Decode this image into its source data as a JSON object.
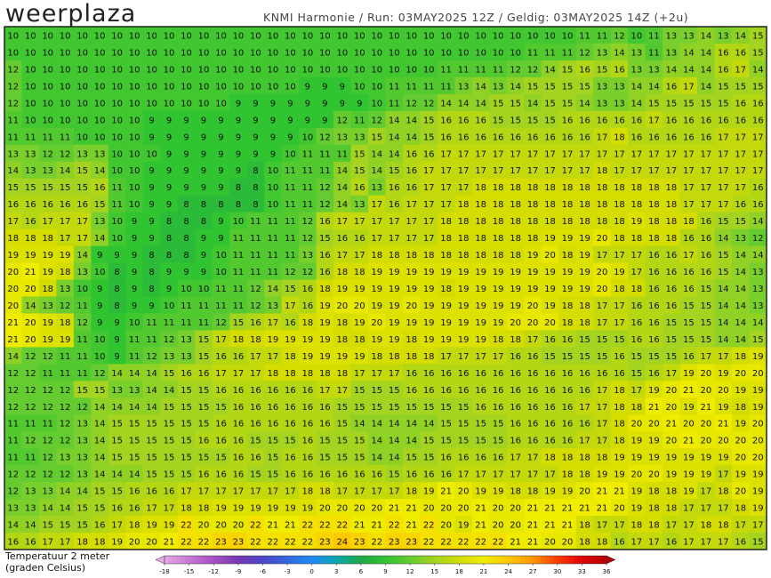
{
  "header": {
    "logo": "weerplaza",
    "info": "KNMI Harmonie / Run: 03MAY2025 12Z / Geldig: 03MAY2025 14Z (+2u)"
  },
  "map": {
    "grid": [
      [
        10,
        10,
        10,
        10,
        10,
        10,
        10,
        10,
        10,
        10,
        10,
        10,
        10,
        10,
        10,
        10,
        10,
        10,
        10,
        10,
        10,
        10,
        10,
        10,
        10,
        10,
        10,
        10,
        10,
        10,
        10,
        10,
        10,
        11,
        11,
        12,
        10,
        11,
        13,
        13,
        14,
        13,
        14,
        15
      ],
      [
        10,
        10,
        10,
        10,
        10,
        10,
        10,
        10,
        10,
        10,
        10,
        10,
        10,
        10,
        10,
        10,
        10,
        10,
        10,
        10,
        10,
        10,
        10,
        10,
        10,
        10,
        10,
        10,
        10,
        10,
        11,
        11,
        11,
        12,
        13,
        14,
        13,
        11,
        13,
        14,
        14,
        16,
        16,
        15
      ],
      [
        12,
        10,
        10,
        10,
        10,
        10,
        10,
        10,
        10,
        10,
        10,
        10,
        10,
        10,
        10,
        10,
        10,
        10,
        10,
        10,
        10,
        10,
        10,
        10,
        10,
        11,
        11,
        11,
        11,
        12,
        12,
        14,
        15,
        16,
        15,
        16,
        13,
        13,
        14,
        14,
        14,
        16,
        17,
        14
      ],
      [
        12,
        10,
        10,
        10,
        10,
        10,
        10,
        10,
        10,
        10,
        10,
        10,
        10,
        10,
        10,
        10,
        10,
        9,
        9,
        9,
        10,
        10,
        11,
        11,
        11,
        11,
        13,
        14,
        13,
        14,
        15,
        15,
        15,
        15,
        13,
        13,
        14,
        14,
        16,
        17,
        14,
        15,
        15,
        15
      ],
      [
        12,
        10,
        10,
        10,
        10,
        10,
        10,
        10,
        10,
        10,
        10,
        10,
        10,
        9,
        9,
        9,
        9,
        9,
        9,
        9,
        9,
        10,
        11,
        12,
        12,
        14,
        14,
        14,
        15,
        15,
        14,
        15,
        15,
        14,
        13,
        13,
        14,
        15,
        15,
        15,
        15,
        15,
        16,
        16
      ],
      [
        11,
        10,
        10,
        10,
        10,
        10,
        10,
        10,
        9,
        9,
        9,
        9,
        9,
        9,
        9,
        9,
        9,
        9,
        9,
        12,
        11,
        12,
        14,
        14,
        15,
        16,
        16,
        16,
        15,
        15,
        15,
        15,
        16,
        16,
        16,
        16,
        16,
        17,
        16,
        16,
        16,
        16,
        16,
        16
      ],
      [
        11,
        11,
        11,
        11,
        10,
        10,
        10,
        10,
        9,
        9,
        9,
        9,
        9,
        9,
        9,
        9,
        9,
        10,
        12,
        13,
        13,
        15,
        14,
        14,
        15,
        16,
        16,
        16,
        16,
        16,
        16,
        16,
        16,
        16,
        17,
        18,
        16,
        16,
        16,
        16,
        16,
        17,
        17,
        17
      ],
      [
        13,
        13,
        12,
        12,
        13,
        13,
        10,
        10,
        10,
        9,
        9,
        9,
        9,
        9,
        9,
        9,
        10,
        11,
        11,
        11,
        15,
        14,
        14,
        16,
        16,
        17,
        17,
        17,
        17,
        17,
        17,
        17,
        17,
        17,
        17,
        17,
        17,
        17,
        17,
        17,
        17,
        17,
        17,
        17
      ],
      [
        14,
        13,
        13,
        14,
        15,
        14,
        10,
        10,
        9,
        9,
        9,
        9,
        9,
        9,
        8,
        10,
        11,
        11,
        11,
        14,
        15,
        14,
        15,
        16,
        17,
        17,
        17,
        17,
        17,
        17,
        17,
        17,
        17,
        17,
        18,
        17,
        17,
        17,
        17,
        17,
        17,
        17,
        17,
        17
      ],
      [
        15,
        15,
        15,
        15,
        15,
        16,
        11,
        10,
        9,
        9,
        9,
        9,
        9,
        8,
        8,
        10,
        11,
        11,
        12,
        14,
        16,
        13,
        16,
        16,
        17,
        17,
        17,
        18,
        18,
        18,
        18,
        18,
        18,
        18,
        18,
        18,
        18,
        18,
        18,
        17,
        17,
        17,
        17,
        16
      ],
      [
        16,
        16,
        16,
        16,
        16,
        15,
        11,
        10,
        9,
        9,
        8,
        8,
        8,
        8,
        8,
        10,
        11,
        11,
        12,
        14,
        13,
        17,
        16,
        17,
        17,
        17,
        18,
        18,
        18,
        18,
        18,
        18,
        18,
        18,
        18,
        18,
        18,
        18,
        18,
        17,
        17,
        17,
        16,
        16
      ],
      [
        17,
        16,
        17,
        17,
        17,
        13,
        10,
        9,
        9,
        8,
        8,
        8,
        9,
        10,
        11,
        11,
        11,
        12,
        16,
        17,
        17,
        17,
        17,
        17,
        17,
        18,
        18,
        18,
        18,
        18,
        18,
        18,
        18,
        18,
        18,
        18,
        19,
        18,
        18,
        18,
        16,
        15,
        15,
        14
      ],
      [
        18,
        18,
        18,
        17,
        17,
        14,
        10,
        9,
        9,
        8,
        8,
        9,
        9,
        11,
        11,
        11,
        11,
        12,
        15,
        16,
        16,
        17,
        17,
        17,
        17,
        18,
        18,
        18,
        18,
        18,
        18,
        19,
        19,
        19,
        20,
        18,
        18,
        18,
        18,
        16,
        16,
        14,
        13,
        12
      ],
      [
        19,
        19,
        19,
        19,
        14,
        9,
        9,
        9,
        8,
        8,
        8,
        9,
        10,
        11,
        11,
        11,
        11,
        13,
        16,
        17,
        17,
        18,
        18,
        18,
        18,
        18,
        18,
        18,
        18,
        18,
        19,
        20,
        18,
        19,
        17,
        17,
        17,
        16,
        16,
        17,
        16,
        15,
        14,
        14
      ],
      [
        20,
        21,
        19,
        18,
        13,
        10,
        8,
        9,
        8,
        9,
        9,
        9,
        10,
        11,
        11,
        11,
        12,
        12,
        16,
        18,
        18,
        19,
        19,
        19,
        19,
        19,
        19,
        19,
        19,
        19,
        19,
        19,
        19,
        19,
        20,
        19,
        17,
        16,
        16,
        16,
        16,
        15,
        14,
        13
      ],
      [
        20,
        20,
        18,
        13,
        10,
        9,
        8,
        9,
        8,
        9,
        10,
        10,
        11,
        11,
        12,
        14,
        15,
        16,
        18,
        19,
        19,
        19,
        19,
        19,
        19,
        18,
        19,
        19,
        19,
        19,
        19,
        19,
        19,
        19,
        20,
        18,
        18,
        16,
        16,
        16,
        15,
        14,
        14,
        13
      ],
      [
        20,
        14,
        13,
        12,
        11,
        9,
        8,
        9,
        9,
        10,
        11,
        11,
        11,
        11,
        12,
        13,
        17,
        16,
        19,
        20,
        20,
        19,
        19,
        20,
        19,
        19,
        19,
        19,
        19,
        19,
        20,
        19,
        18,
        18,
        17,
        17,
        16,
        16,
        16,
        15,
        15,
        14,
        14,
        13
      ],
      [
        21,
        20,
        19,
        18,
        12,
        9,
        9,
        10,
        11,
        11,
        11,
        11,
        12,
        15,
        16,
        17,
        16,
        18,
        19,
        18,
        19,
        20,
        19,
        19,
        19,
        19,
        19,
        19,
        19,
        20,
        20,
        20,
        18,
        18,
        17,
        17,
        16,
        16,
        15,
        15,
        15,
        14,
        14,
        14
      ],
      [
        21,
        20,
        19,
        19,
        11,
        10,
        9,
        11,
        11,
        12,
        13,
        15,
        17,
        18,
        18,
        19,
        19,
        19,
        19,
        18,
        18,
        19,
        19,
        18,
        19,
        19,
        19,
        19,
        18,
        18,
        17,
        16,
        16,
        15,
        15,
        15,
        16,
        16,
        15,
        15,
        15,
        14,
        14,
        15
      ],
      [
        14,
        12,
        12,
        11,
        11,
        10,
        9,
        11,
        12,
        13,
        13,
        15,
        16,
        16,
        17,
        17,
        18,
        19,
        19,
        19,
        19,
        18,
        18,
        18,
        18,
        17,
        17,
        17,
        17,
        16,
        16,
        15,
        15,
        15,
        15,
        16,
        15,
        15,
        15,
        16,
        17,
        17,
        18,
        19
      ],
      [
        12,
        12,
        11,
        11,
        11,
        12,
        14,
        14,
        14,
        15,
        16,
        16,
        17,
        17,
        17,
        18,
        18,
        18,
        18,
        18,
        17,
        17,
        17,
        16,
        16,
        16,
        16,
        16,
        16,
        16,
        16,
        16,
        16,
        16,
        16,
        16,
        15,
        16,
        17,
        19,
        20,
        19,
        20,
        20
      ],
      [
        12,
        12,
        12,
        12,
        15,
        15,
        13,
        13,
        14,
        14,
        15,
        15,
        16,
        16,
        16,
        16,
        16,
        16,
        17,
        17,
        15,
        15,
        15,
        16,
        16,
        16,
        16,
        16,
        16,
        16,
        16,
        16,
        16,
        16,
        17,
        18,
        17,
        19,
        20,
        21,
        20,
        20,
        19,
        19
      ],
      [
        12,
        12,
        12,
        12,
        12,
        14,
        14,
        14,
        14,
        15,
        15,
        15,
        15,
        16,
        16,
        16,
        16,
        16,
        16,
        15,
        15,
        15,
        15,
        15,
        15,
        15,
        15,
        16,
        16,
        16,
        16,
        16,
        16,
        17,
        17,
        18,
        18,
        21,
        20,
        19,
        21,
        19,
        18,
        19
      ],
      [
        11,
        11,
        11,
        12,
        13,
        14,
        15,
        15,
        15,
        15,
        15,
        15,
        16,
        16,
        16,
        16,
        16,
        16,
        16,
        15,
        14,
        14,
        14,
        14,
        14,
        15,
        15,
        15,
        15,
        16,
        16,
        16,
        16,
        16,
        17,
        18,
        20,
        20,
        21,
        20,
        20,
        21,
        19,
        20
      ],
      [
        11,
        12,
        12,
        12,
        13,
        14,
        15,
        15,
        15,
        15,
        15,
        16,
        16,
        16,
        15,
        15,
        15,
        16,
        15,
        15,
        15,
        14,
        14,
        14,
        15,
        15,
        15,
        15,
        15,
        16,
        16,
        16,
        16,
        17,
        17,
        18,
        19,
        19,
        20,
        21,
        20,
        20,
        20,
        20
      ],
      [
        11,
        11,
        12,
        13,
        13,
        14,
        15,
        15,
        15,
        15,
        15,
        15,
        15,
        16,
        16,
        15,
        16,
        16,
        15,
        15,
        15,
        14,
        14,
        15,
        15,
        16,
        16,
        16,
        16,
        17,
        17,
        18,
        18,
        18,
        18,
        19,
        19,
        19,
        19,
        19,
        19,
        19,
        20,
        20
      ],
      [
        12,
        12,
        12,
        12,
        13,
        14,
        14,
        14,
        15,
        15,
        15,
        16,
        16,
        16,
        15,
        15,
        16,
        16,
        16,
        16,
        16,
        16,
        15,
        16,
        16,
        16,
        17,
        17,
        17,
        17,
        17,
        17,
        18,
        18,
        19,
        19,
        20,
        20,
        19,
        19,
        19,
        17,
        19,
        19
      ],
      [
        12,
        13,
        13,
        14,
        14,
        15,
        15,
        16,
        16,
        16,
        17,
        17,
        17,
        17,
        17,
        17,
        17,
        18,
        18,
        17,
        17,
        17,
        17,
        18,
        19,
        21,
        20,
        19,
        19,
        18,
        18,
        19,
        19,
        20,
        21,
        21,
        19,
        18,
        18,
        19,
        17,
        18,
        20,
        19
      ],
      [
        13,
        13,
        14,
        14,
        15,
        15,
        16,
        16,
        17,
        17,
        18,
        18,
        19,
        19,
        19,
        19,
        19,
        19,
        20,
        20,
        20,
        20,
        21,
        21,
        20,
        20,
        20,
        21,
        20,
        20,
        21,
        21,
        21,
        21,
        21,
        20,
        19,
        18,
        18,
        17,
        17,
        17,
        18,
        19
      ],
      [
        14,
        14,
        15,
        15,
        15,
        16,
        17,
        18,
        19,
        19,
        22,
        20,
        20,
        20,
        22,
        21,
        21,
        22,
        22,
        22,
        21,
        21,
        22,
        21,
        22,
        20,
        19,
        21,
        20,
        20,
        21,
        21,
        21,
        18,
        17,
        17,
        18,
        18,
        17,
        17,
        18,
        18,
        17,
        17
      ],
      [
        16,
        16,
        17,
        17,
        18,
        18,
        19,
        20,
        20,
        21,
        22,
        22,
        23,
        23,
        22,
        22,
        22,
        22,
        23,
        24,
        23,
        22,
        23,
        23,
        22,
        22,
        22,
        22,
        22,
        21,
        21,
        20,
        20,
        18,
        18,
        16,
        17,
        17,
        16,
        17,
        17,
        17,
        16,
        15
      ]
    ]
  },
  "legend": {
    "title": "Temperatuur 2 meter",
    "unit": "(graden Celsius)",
    "ticks": [
      -18,
      -15,
      -12,
      -9,
      -6,
      -3,
      0,
      3,
      6,
      9,
      12,
      15,
      18,
      21,
      24,
      27,
      30,
      33,
      36
    ],
    "colors": [
      "#e4a8e4",
      "#c878d4",
      "#a850c4",
      "#7838b4",
      "#4c44c8",
      "#3468e0",
      "#2088f8",
      "#08a8b0",
      "#20a848",
      "#30c430",
      "#64cc30",
      "#a4d420",
      "#d4dc00",
      "#f0ec00",
      "#ffc800",
      "#ff9400",
      "#ff3c00",
      "#e00000",
      "#b40000"
    ]
  }
}
